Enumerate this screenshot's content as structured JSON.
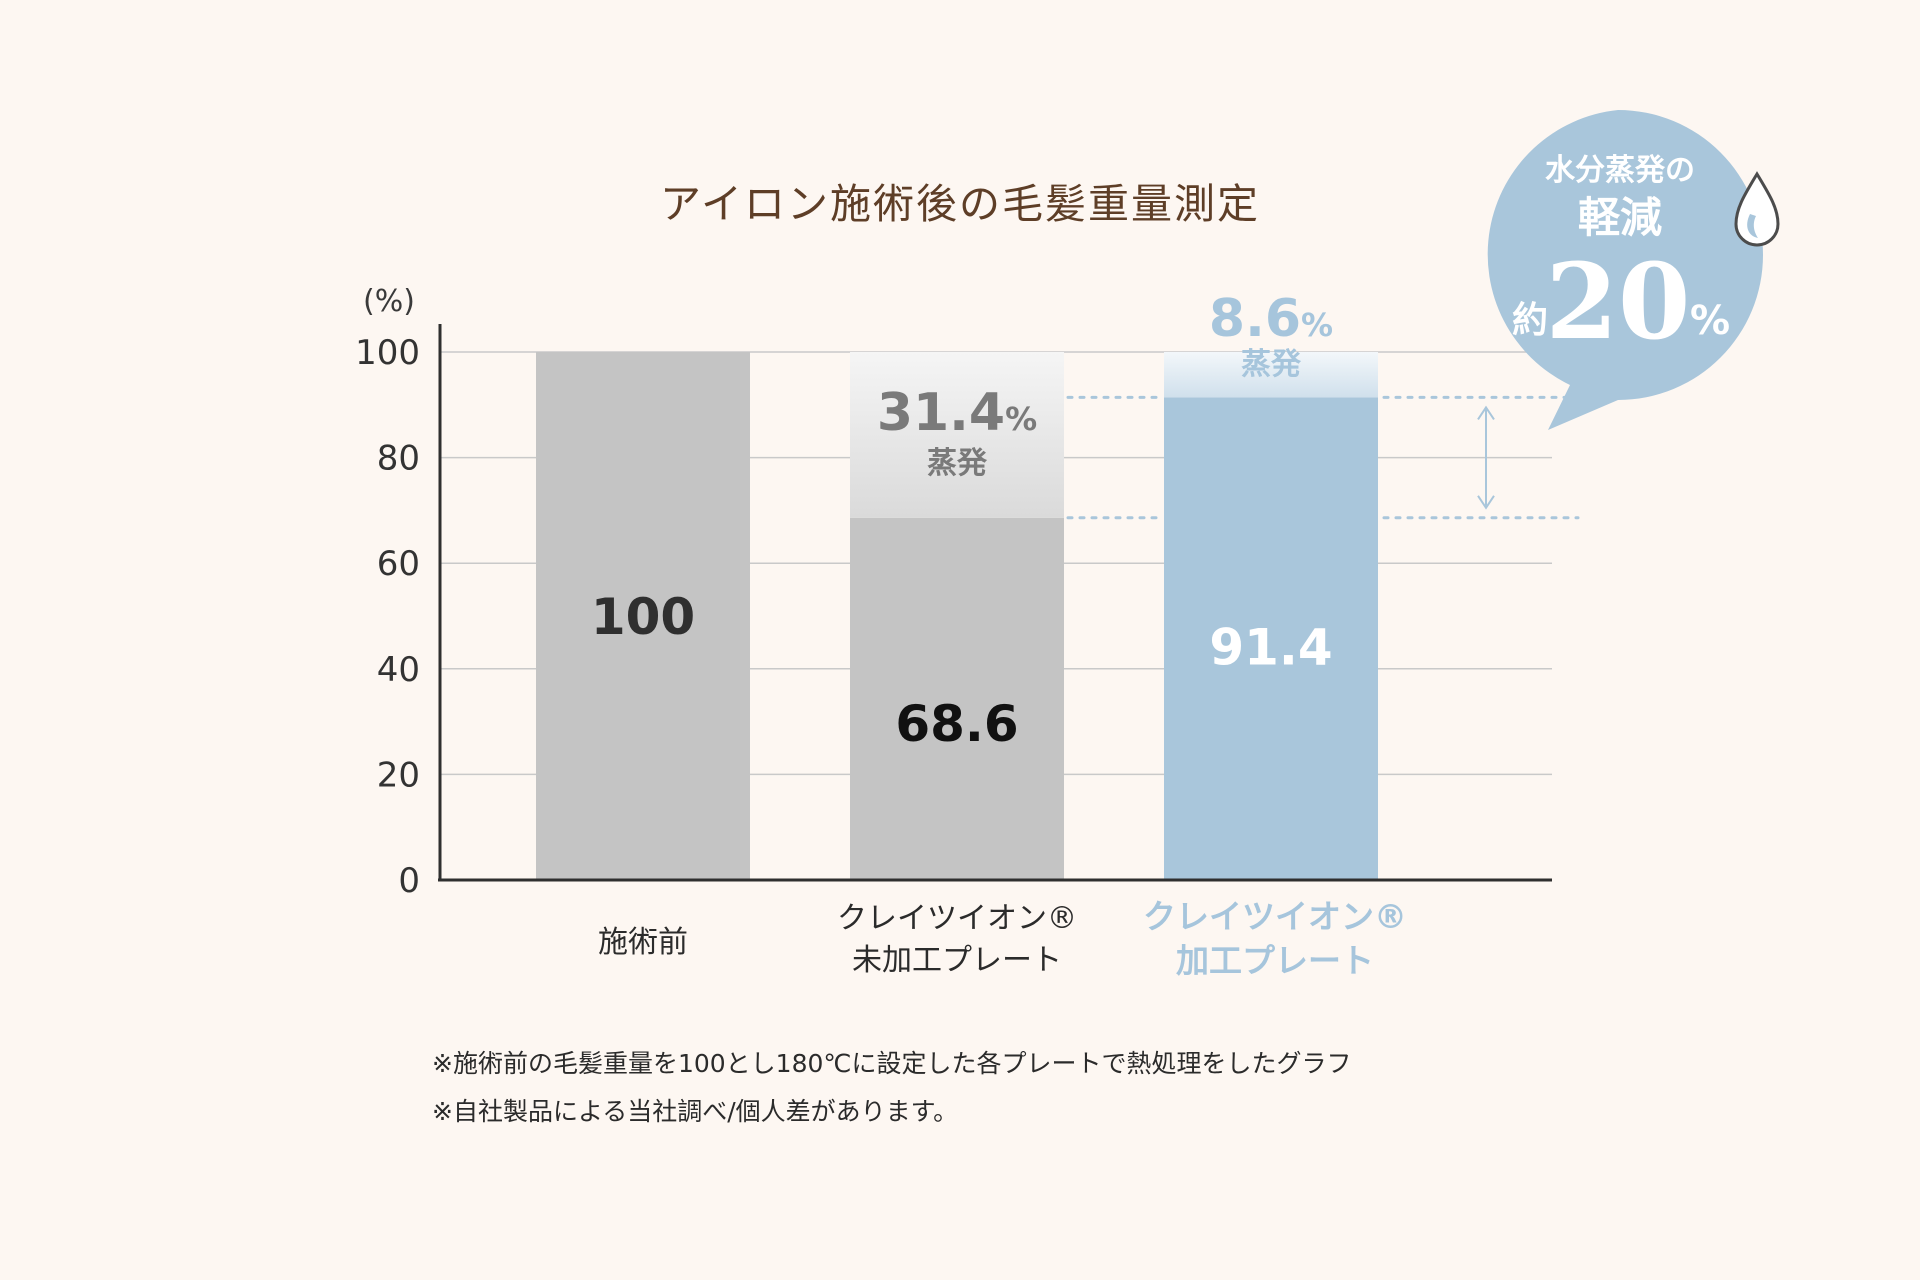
{
  "chart_data": {
    "type": "bar",
    "title": "アイロン施術後の毛髪重量測定",
    "ylabel": "(%)",
    "ylim": [
      0,
      100
    ],
    "yticks": [
      "0",
      "20",
      "40",
      "60",
      "80",
      "100"
    ],
    "categories": [
      {
        "line1": "施術前",
        "line2": ""
      },
      {
        "line1": "クレイツイオン®",
        "line2": "未加工プレート"
      },
      {
        "line1": "クレイツイオン®",
        "line2": "加工プレート"
      }
    ],
    "series": [
      {
        "name": "",
        "values": [
          100,
          68.6,
          91.4
        ],
        "labels": [
          "100",
          "68.6",
          "91.4"
        ]
      },
      {
        "name": "蒸発",
        "values": [
          0,
          31.4,
          8.6
        ],
        "labels": [
          "",
          "31.4",
          "8.6"
        ]
      }
    ],
    "evaporation_label": "蒸発",
    "percent_sign": "%",
    "grid": true,
    "legend": "none",
    "colors": {
      "gray_bar": "#c4c4c4",
      "gray_evap_top": "#f4f4f4",
      "gray_evap_bottom": "#dcdcdc",
      "blue_bar": "#a9c6db",
      "blue_evap_top": "#f3f7fa",
      "blue_evap_bottom": "#d4e3ee",
      "blue_text": "#a6c5dc",
      "gray_text": "#7a7a7a",
      "dark_text": "#2f2f2f",
      "background": "#fdf7f2",
      "title": "#5e3e27",
      "grid": "#c9c9c9",
      "dotted": "#a9c6db",
      "bubble": "#a9c6db"
    }
  },
  "callout": {
    "line1": "水分蒸発の",
    "line2": "軽減",
    "prefix": "約",
    "number": "20",
    "suffix": "%",
    "icon": "water-drop-icon"
  },
  "notes": [
    "※施術前の毛髪重量を100とし180℃に設定した各プレートで熱処理をしたグラフ",
    "※自社製品による当社調べ/個人差があります。"
  ]
}
